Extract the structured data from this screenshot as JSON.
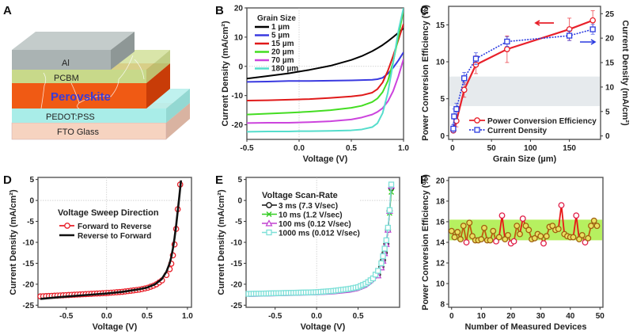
{
  "panel_A": {
    "letter": "A",
    "layers": [
      {
        "name": "Al",
        "color": "#aab3b3"
      },
      {
        "name": "PCBM",
        "color": "#c8d98a"
      },
      {
        "name": "Perovskite",
        "color": "#f05a14"
      },
      {
        "name": "PEDOT:PSS",
        "color": "#a9ede8"
      },
      {
        "name": "FTO Glass",
        "color": "#f6d3c0"
      }
    ]
  },
  "chart_data": [
    {
      "panel": "B",
      "type": "line",
      "title": "",
      "xlabel": "Voltage (V)",
      "ylabel": "Current Density (mA/cm²)",
      "xlim": [
        -0.5,
        1.0
      ],
      "ylim": [
        -25,
        20
      ],
      "xticks": [
        -0.5,
        0.0,
        0.5,
        1.0
      ],
      "xtick_labels": [
        "-0.5",
        "0.0",
        "0.5",
        "1.0"
      ],
      "yticks": [
        20,
        10,
        0,
        -10,
        -20
      ],
      "ytick_labels": [
        "20",
        "10",
        "0",
        "-10",
        "-20"
      ],
      "legend_title": "Grain Size",
      "legend_position": "top-left",
      "x": [
        -0.5,
        -0.3,
        -0.1,
        0.0,
        0.1,
        0.3,
        0.5,
        0.6,
        0.7,
        0.75,
        0.8,
        0.85,
        0.9,
        0.95,
        1.0
      ],
      "series": [
        {
          "name": "1 µm",
          "color": "#000000",
          "values": [
            -4.2,
            -3.3,
            -2.4,
            -1.8,
            -1.2,
            0.2,
            2.2,
            3.5,
            5.2,
            6.2,
            7.3,
            8.6,
            10.0,
            11.5,
            13.0
          ]
        },
        {
          "name": "5 µm",
          "color": "#3a3ae0",
          "values": [
            -5.3,
            -5.2,
            -5.0,
            -5.0,
            -5.0,
            -4.9,
            -4.8,
            -4.7,
            -4.6,
            -4.4,
            -3.9,
            -2.5,
            -0.5,
            2.0,
            4.8
          ]
        },
        {
          "name": "15 µm",
          "color": "#e01a1a",
          "values": [
            -11.7,
            -11.6,
            -11.4,
            -11.3,
            -11.2,
            -10.8,
            -10.3,
            -9.9,
            -9.0,
            -7.8,
            -5.5,
            -1.5,
            3.5,
            9.0,
            14.5
          ]
        },
        {
          "name": "20 µm",
          "color": "#44dd22",
          "values": [
            -16.5,
            -16.2,
            -15.9,
            -15.7,
            -15.5,
            -15.0,
            -14.2,
            -13.5,
            -12.2,
            -11.0,
            -8.8,
            -5.0,
            1.5,
            10.0,
            19.5
          ]
        },
        {
          "name": "70 µm",
          "color": "#cc44dd",
          "values": [
            -19.4,
            -19.3,
            -19.3,
            -19.2,
            -19.1,
            -18.8,
            -18.2,
            -17.5,
            -16.5,
            -15.6,
            -14.3,
            -12.0,
            -8.5,
            -3.5,
            2.5
          ]
        },
        {
          "name": "180 µm",
          "color": "#55ddcc",
          "values": [
            -22.4,
            -22.3,
            -22.3,
            -22.2,
            -22.2,
            -22.1,
            -21.9,
            -21.6,
            -20.8,
            -19.5,
            -16.0,
            -9.0,
            1.0,
            12.0,
            20.0
          ]
        }
      ]
    },
    {
      "panel": "C",
      "type": "line",
      "title": "",
      "xlabel": "Grain Size (µm)",
      "ylabel": "Power Conversion Efficiency (%)",
      "ylabel_right": "Current Density (mA/cm²)",
      "xlim": [
        -5,
        190
      ],
      "ylim": [
        -0.5,
        17.5
      ],
      "ylim_right": [
        -0.7,
        26.5
      ],
      "xticks": [
        0,
        50,
        100,
        150
      ],
      "xtick_labels": [
        "0",
        "50",
        "100",
        "150"
      ],
      "yticks": [
        0,
        5,
        10,
        15
      ],
      "ytick_labels": [
        "0",
        "5",
        "10",
        "15"
      ],
      "yticks_right": [
        0,
        5,
        10,
        15,
        20,
        25
      ],
      "ytick_labels_right": [
        "0",
        "5",
        "10",
        "15",
        "20",
        "25"
      ],
      "legend_position": "bottom-right",
      "series": [
        {
          "name": "Power Conversion Efficiency",
          "color": "#e8202a",
          "axis": "left",
          "marker": "circle",
          "line": "solid",
          "x": [
            1,
            5,
            15,
            30,
            70,
            150,
            180
          ],
          "values": [
            0.7,
            2.0,
            6.2,
            9.6,
            11.7,
            14.4,
            15.6
          ],
          "errors": [
            0.3,
            0.8,
            1.0,
            1.2,
            1.8,
            1.5,
            1.3
          ]
        },
        {
          "name": "Current Density",
          "color": "#2a3ae0",
          "axis": "right",
          "marker": "square",
          "line": "dotted",
          "x": [
            1,
            2,
            5,
            15,
            30,
            70,
            150,
            180
          ],
          "values": [
            1.5,
            4.0,
            5.5,
            11.8,
            15.8,
            19.3,
            20.5,
            21.8
          ],
          "errors": [
            0.8,
            1.5,
            1.2,
            1.2,
            1.2,
            1.0,
            1.0,
            1.0
          ]
        }
      ],
      "annotations": [
        "left arrow pointing to PCE axis",
        "right arrow pointing to Current Density axis",
        "shaded band between PCE 4 and 8"
      ]
    },
    {
      "panel": "D",
      "type": "line",
      "title": "",
      "xlabel": "Voltage (V)",
      "ylabel": "Current Density (mA/cm²)",
      "xlim": [
        -0.85,
        1.05
      ],
      "ylim": [
        -25.5,
        5.5
      ],
      "xticks": [
        -0.5,
        0.0,
        0.5,
        1.0
      ],
      "xtick_labels": [
        "-0.5",
        "0.0",
        "0.5",
        "1.0"
      ],
      "yticks": [
        5,
        0,
        -5,
        -10,
        -15,
        -20,
        -25
      ],
      "ytick_labels": [
        "5",
        "0",
        "-5",
        "-10",
        "-15",
        "-20",
        "-25"
      ],
      "legend_title": "Voltage Sweep Direction",
      "legend_position": "center-left",
      "series": [
        {
          "name": "Forward to Reverse",
          "color": "#e8202a",
          "marker": "circle",
          "x": [
            -0.82,
            -0.6,
            -0.4,
            -0.2,
            0.0,
            0.2,
            0.4,
            0.5,
            0.6,
            0.68,
            0.74,
            0.78,
            0.8,
            0.82,
            0.84,
            0.86,
            0.88,
            0.91
          ],
          "values": [
            -22.9,
            -22.7,
            -22.5,
            -22.3,
            -22.1,
            -21.8,
            -21.3,
            -20.9,
            -20.2,
            -19.2,
            -17.8,
            -16.4,
            -15.1,
            -13.1,
            -10.5,
            -6.8,
            -2.1,
            3.8
          ]
        },
        {
          "name": "Reverse to Forward",
          "color": "#111111",
          "marker": "none",
          "x": [
            -0.82,
            -0.6,
            -0.4,
            -0.2,
            0.0,
            0.2,
            0.4,
            0.5,
            0.6,
            0.68,
            0.74,
            0.78,
            0.8,
            0.82,
            0.84,
            0.86,
            0.88,
            0.9,
            0.92
          ],
          "values": [
            -23.5,
            -23.1,
            -22.8,
            -22.5,
            -22.2,
            -21.8,
            -21.2,
            -20.8,
            -20.0,
            -18.8,
            -17.0,
            -15.0,
            -13.5,
            -11.5,
            -9.0,
            -6.0,
            -2.5,
            1.0,
            4.8
          ]
        }
      ]
    },
    {
      "panel": "E",
      "type": "line",
      "title": "",
      "xlabel": "Voltage (V)",
      "ylabel": "Current Density (mA/cm²)",
      "xlim": [
        -0.85,
        1.0
      ],
      "ylim": [
        -25.5,
        5.5
      ],
      "xticks": [
        -0.5,
        0.0,
        0.5
      ],
      "xtick_labels": [
        "-0.5",
        "0.0",
        "0.5"
      ],
      "yticks": [
        5,
        0,
        -5,
        -10,
        -15,
        -20,
        -25
      ],
      "ytick_labels": [
        "5",
        "0",
        "-5",
        "-10",
        "-15",
        "-20",
        "-25"
      ],
      "legend_title": "Voltage Scan-Rate",
      "legend_position": "top-left",
      "x": [
        -0.82,
        -0.6,
        -0.4,
        -0.2,
        0.0,
        0.2,
        0.4,
        0.5,
        0.6,
        0.68,
        0.74,
        0.78,
        0.8,
        0.82,
        0.84,
        0.86,
        0.88,
        0.9
      ],
      "series": [
        {
          "name": "3 ms (7.3 V/sec)",
          "color": "#111111",
          "marker": "circle",
          "values": [
            -22.8,
            -22.7,
            -22.6,
            -22.5,
            -22.3,
            -22.1,
            -21.7,
            -21.3,
            -20.5,
            -19.3,
            -17.7,
            -15.8,
            -14.2,
            -12.5,
            -10.3,
            -7.0,
            -2.5,
            3.0
          ]
        },
        {
          "name": "10 ms (1.2 V/sec)",
          "color": "#33cc22",
          "marker": "x",
          "values": [
            -22.8,
            -22.7,
            -22.6,
            -22.5,
            -22.3,
            -22.1,
            -21.7,
            -21.3,
            -20.5,
            -19.3,
            -17.7,
            -15.8,
            -14.2,
            -12.5,
            -10.3,
            -7.0,
            -3.0,
            2.0
          ]
        },
        {
          "name": "100 ms (0.12 V/sec)",
          "color": "#c040d0",
          "marker": "triangle",
          "values": [
            -22.9,
            -22.8,
            -22.7,
            -22.6,
            -22.5,
            -22.3,
            -21.9,
            -21.5,
            -20.7,
            -19.5,
            -17.9,
            -16.0,
            -14.4,
            -12.6,
            -10.4,
            -7.0,
            -2.5,
            3.5
          ]
        },
        {
          "name": "1000 ms (0.012 V/sec)",
          "color": "#7ee0d8",
          "marker": "square",
          "values": [
            -22.3,
            -22.2,
            -22.1,
            -22.0,
            -21.9,
            -21.6,
            -21.1,
            -20.7,
            -19.8,
            -18.6,
            -16.8,
            -15.0,
            -13.3,
            -11.5,
            -9.5,
            -6.5,
            -2.3,
            3.8
          ]
        }
      ]
    },
    {
      "panel": "F",
      "type": "line",
      "title": "",
      "xlabel": "Number of Measured Devices",
      "ylabel": "Power Conversion Efficiency (%)",
      "xlim": [
        -1,
        51
      ],
      "ylim": [
        7.7,
        20.3
      ],
      "xticks": [
        0,
        10,
        20,
        30,
        40,
        50
      ],
      "xtick_labels": [
        "0",
        "10",
        "20",
        "30",
        "40",
        "50"
      ],
      "yticks": [
        8,
        10,
        12,
        14,
        16,
        18,
        20
      ],
      "ytick_labels": [
        "8",
        "10",
        "12",
        "14",
        "16",
        "18",
        "20"
      ],
      "band": [
        14.2,
        16.2
      ],
      "band_color": "#b6f060",
      "x": [
        0,
        1,
        2,
        3,
        4,
        5,
        6,
        7,
        8,
        9,
        10,
        11,
        12,
        13,
        14,
        15,
        16,
        17,
        18,
        19,
        20,
        21,
        22,
        23,
        24,
        25,
        26,
        27,
        28,
        29,
        30,
        31,
        32,
        33,
        34,
        35,
        36,
        37,
        38,
        39,
        40,
        41,
        42,
        43,
        44,
        45,
        46,
        47,
        48,
        49
      ],
      "series": [
        {
          "name": "PCE",
          "color": "#cc5500",
          "values": [
            15.1,
            14.5,
            15.0,
            14.3,
            15.6,
            14.0,
            15.9,
            14.6,
            14.2,
            14.2,
            14.3,
            15.4,
            14.2,
            14.2,
            15.1,
            14.1,
            14.5,
            16.6,
            14.3,
            14.7,
            13.9,
            14.1,
            15.6,
            14.8,
            16.3,
            15.6,
            15.2,
            14.3,
            14.4,
            14.8,
            14.6,
            13.9,
            14.6,
            15.5,
            15.6,
            15.2,
            15.3,
            17.6,
            14.8,
            14.6,
            14.5,
            14.5,
            16.6,
            14.3,
            14.7,
            14.0,
            14.4,
            15.6,
            16.1,
            15.6
          ]
        }
      ]
    }
  ]
}
